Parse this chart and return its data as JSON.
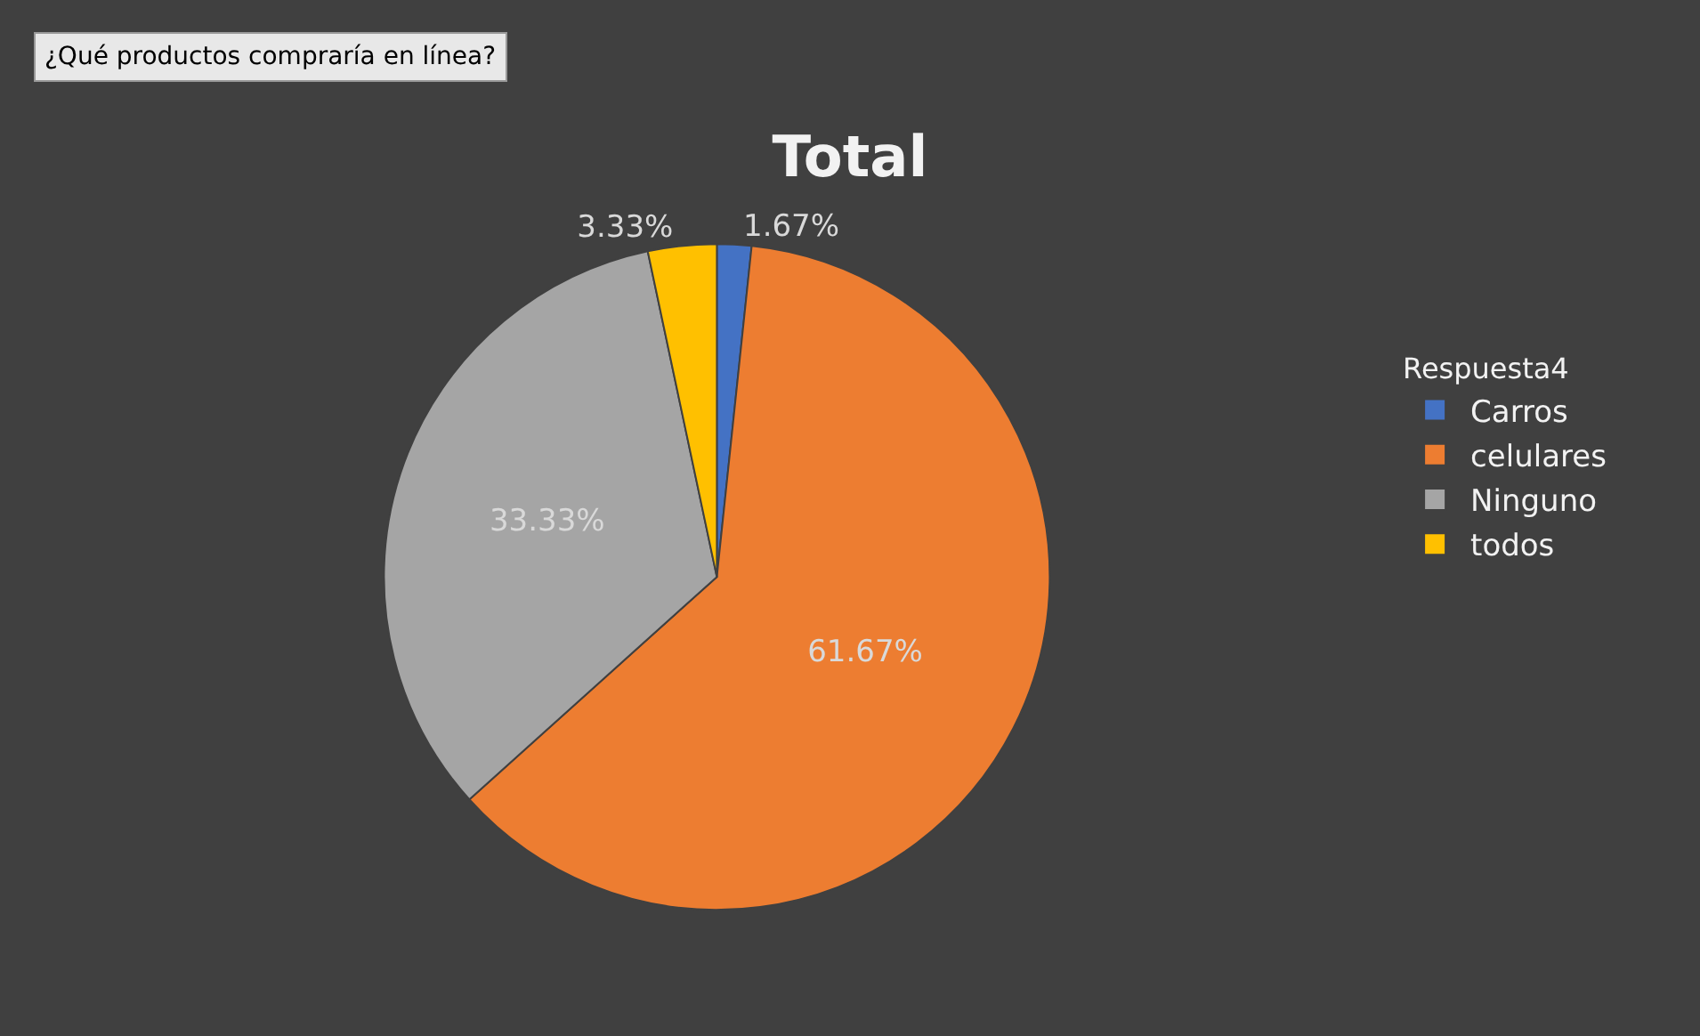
{
  "chart_data": {
    "type": "pie",
    "title": "Total",
    "annotations": [
      "¿Qué productos compraría en línea?"
    ],
    "legend_title": "Respuesta4",
    "legend": "right",
    "categories": [
      "Carros",
      "celulares",
      "Ninguno",
      "todos"
    ],
    "values": [
      1.67,
      61.67,
      33.33,
      3.33
    ],
    "value_labels": [
      "1.67%",
      "61.67%",
      "33.33%",
      "3.33%"
    ],
    "colors": [
      "#4472c4",
      "#ed7d31",
      "#a5a5a5",
      "#ffc000"
    ]
  }
}
